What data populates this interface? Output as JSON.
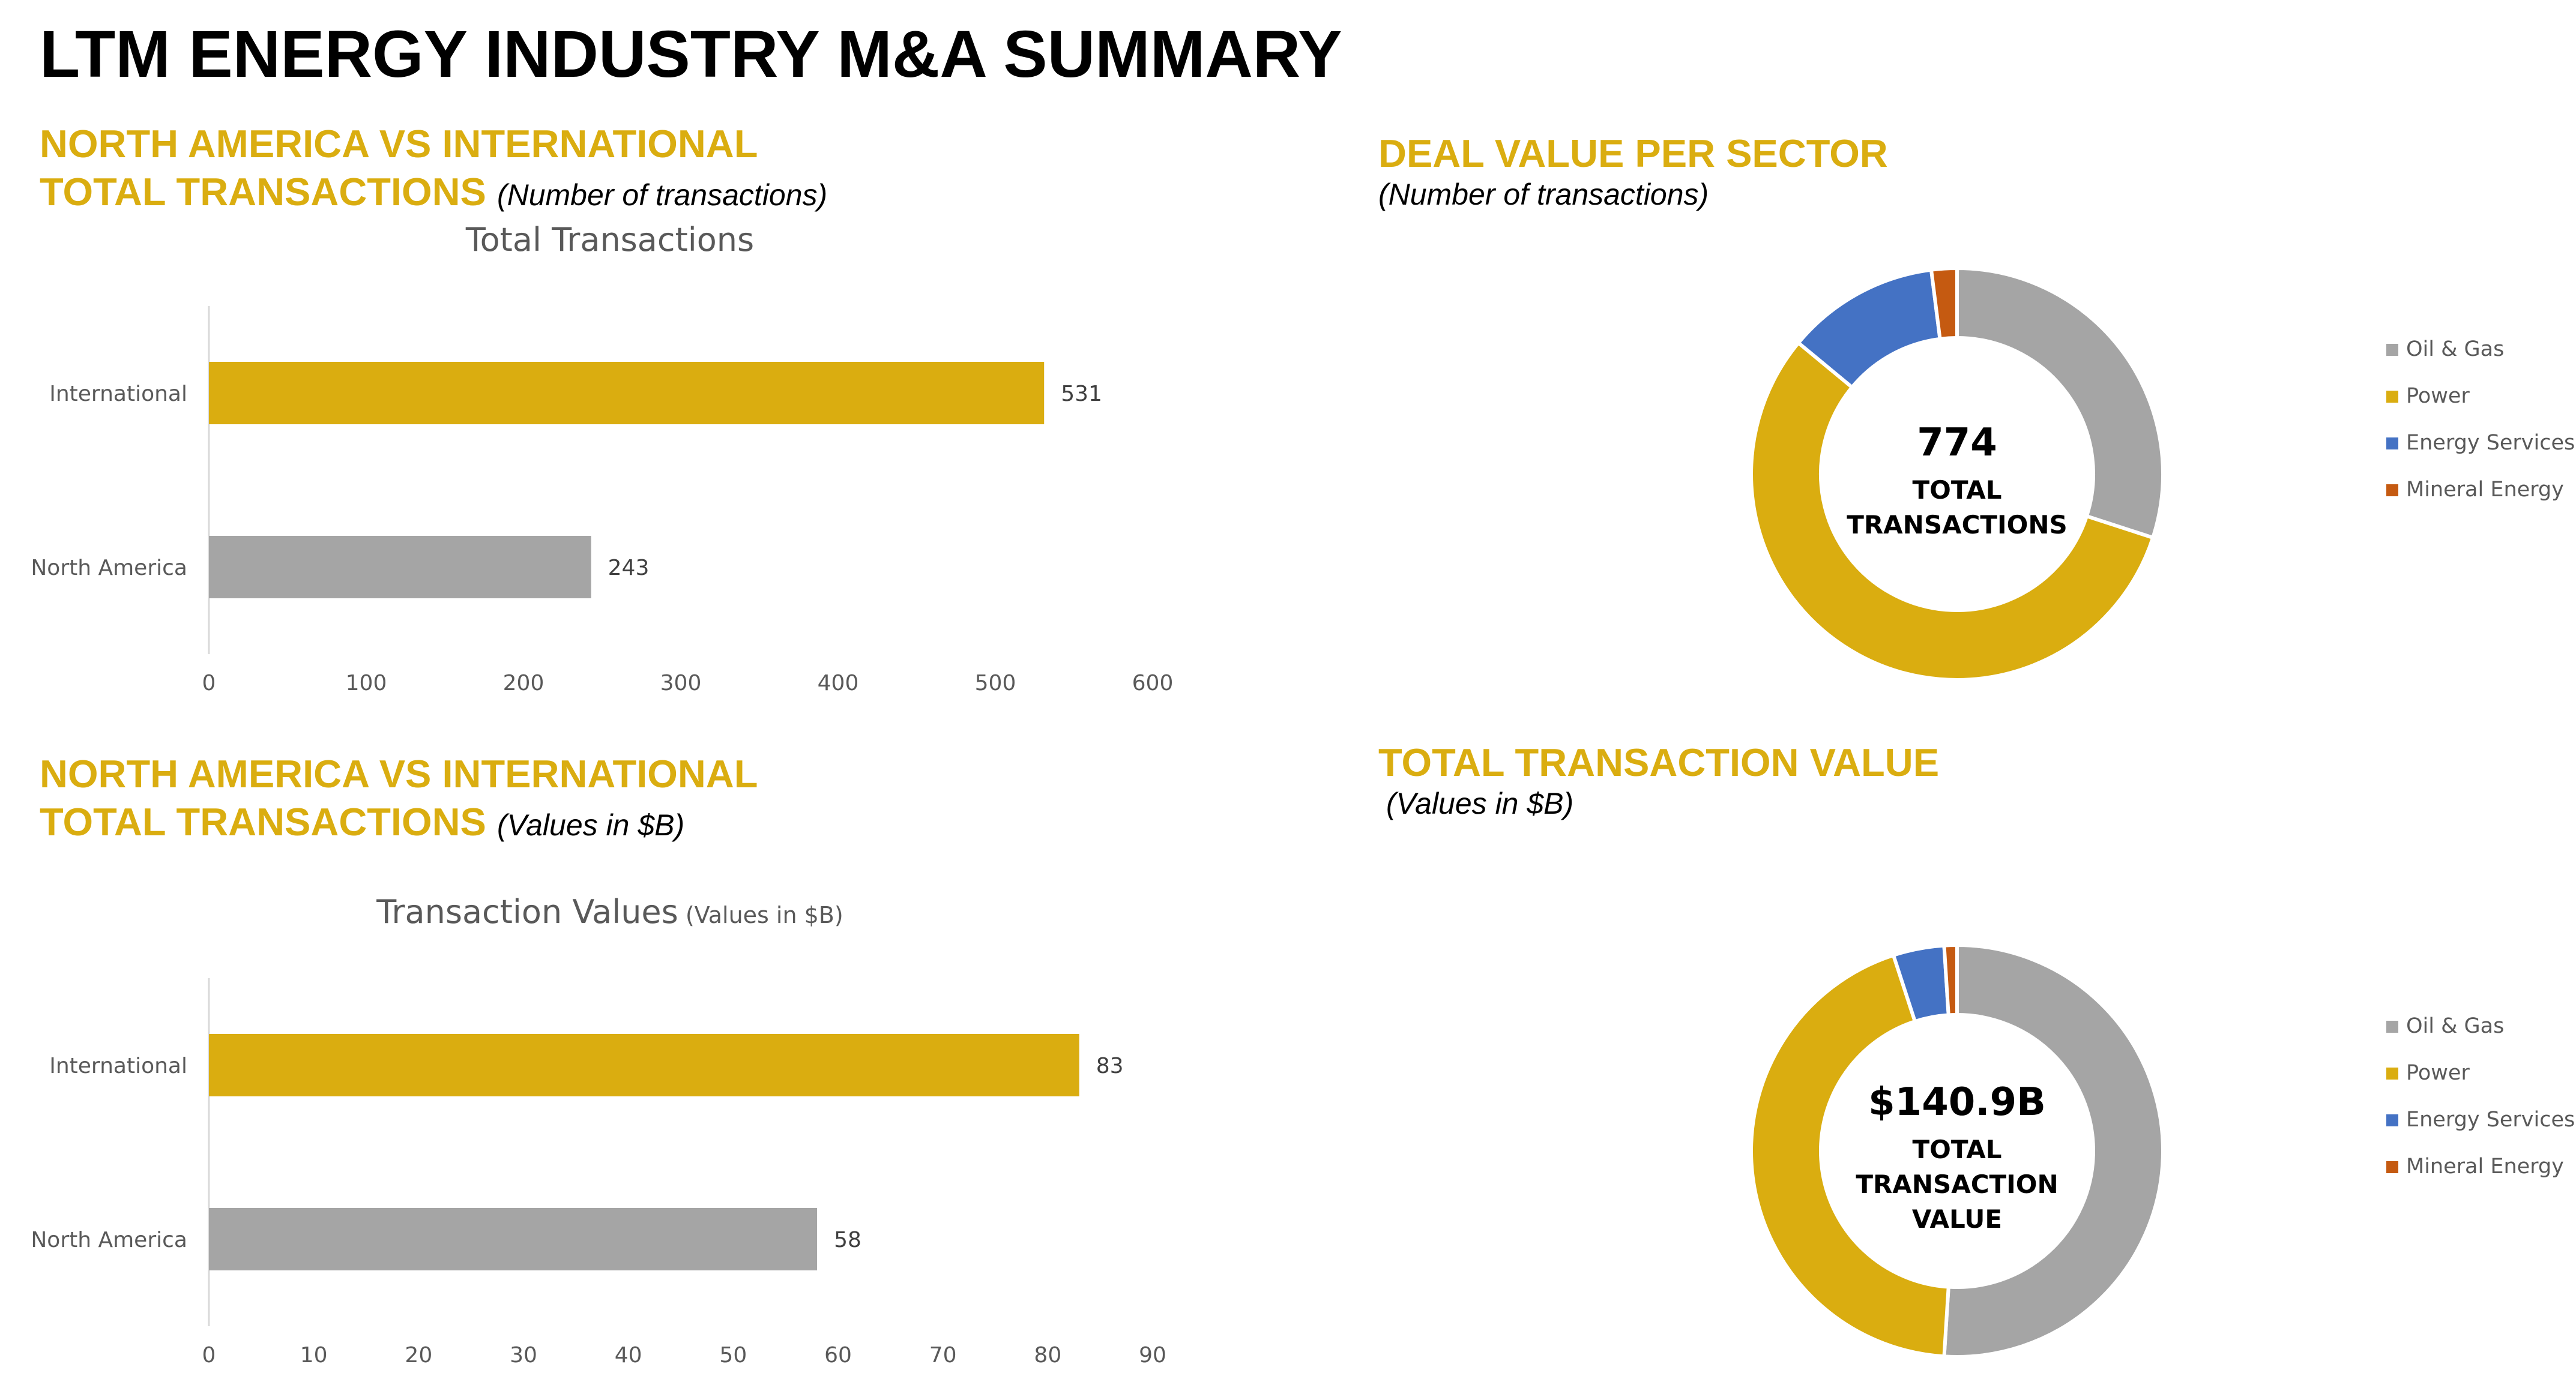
{
  "page": {
    "title": "LTM ENERGY INDUSTRY M&A SUMMARY"
  },
  "sections": {
    "na_vs_intl_count": {
      "title_line1": "NORTH AMERICA VS INTERNATIONAL",
      "title_line2": "TOTAL TRANSACTIONS",
      "subtitle": "(Number of transactions)"
    },
    "na_vs_intl_value": {
      "title_line1": "NORTH AMERICA VS INTERNATIONAL",
      "title_line2": "TOTAL TRANSACTIONS",
      "subtitle": "(Values in $B)"
    },
    "deal_value_per_sector": {
      "title": "DEAL VALUE PER SECTOR",
      "subtitle": "(Number of transactions)"
    },
    "total_transaction_value": {
      "title": "TOTAL TRANSACTION VALUE",
      "subtitle": "(Values in $B)"
    }
  },
  "colors": {
    "gold": "#DAAD10",
    "gray": "#A5A5A5",
    "blue": "#4472C4",
    "orange": "#C55A11",
    "axis_text": "#595959",
    "axis_line": "#D9D9D9"
  },
  "chart_data": [
    {
      "id": "total-transactions-bar",
      "type": "bar",
      "orientation": "horizontal",
      "title": "Total Transactions",
      "title_suffix": "",
      "categories": [
        "International",
        "North America"
      ],
      "values": [
        531,
        243
      ],
      "bar_colors": [
        "#DAAD10",
        "#A5A5A5"
      ],
      "xlim": [
        0,
        600
      ],
      "x_ticks": [
        0,
        100,
        200,
        300,
        400,
        500,
        600
      ],
      "grid": false,
      "legend": "none"
    },
    {
      "id": "transaction-values-bar",
      "type": "bar",
      "orientation": "horizontal",
      "title": "Transaction Values",
      "title_suffix": "(Values in $B)",
      "categories": [
        "International",
        "North America"
      ],
      "values": [
        83,
        58
      ],
      "bar_colors": [
        "#DAAD10",
        "#A5A5A5"
      ],
      "xlim": [
        0,
        90
      ],
      "x_ticks": [
        0,
        10,
        20,
        30,
        40,
        50,
        60,
        70,
        80,
        90
      ],
      "grid": false,
      "legend": "none"
    },
    {
      "id": "deal-sector-donut",
      "type": "pie",
      "style": "donut",
      "categories": [
        "Oil & Gas",
        "Power",
        "Energy Services",
        "Mineral Energy"
      ],
      "values": [
        30,
        56,
        12,
        2
      ],
      "colors": [
        "#A5A5A5",
        "#DAAD10",
        "#4472C4",
        "#C55A11"
      ],
      "center_value": "774",
      "center_label_lines": [
        "TOTAL",
        "TRANSACTIONS"
      ],
      "legend": "right"
    },
    {
      "id": "transaction-value-donut",
      "type": "pie",
      "style": "donut",
      "categories": [
        "Oil & Gas",
        "Power",
        "Energy Services",
        "Mineral Energy"
      ],
      "values": [
        51,
        44,
        4,
        1
      ],
      "colors": [
        "#A5A5A5",
        "#DAAD10",
        "#4472C4",
        "#C55A11"
      ],
      "center_value": "$140.9B",
      "center_label_lines": [
        "TOTAL",
        "TRANSACTION",
        "VALUE"
      ],
      "legend": "right"
    }
  ]
}
